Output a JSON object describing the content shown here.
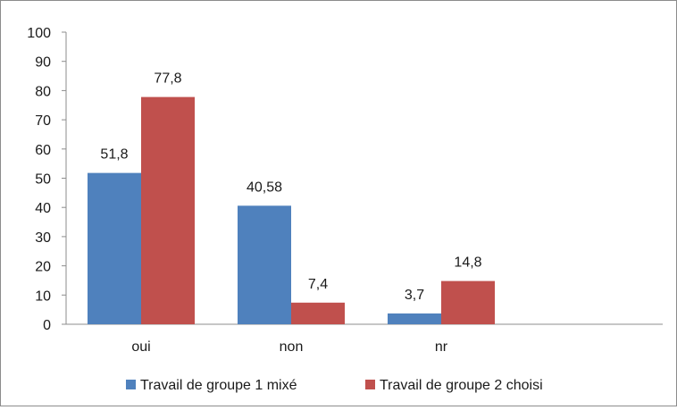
{
  "chart_data": {
    "type": "bar",
    "categories": [
      "oui",
      "non",
      "nr"
    ],
    "series": [
      {
        "name": "Travail de groupe 1 mixé",
        "values": [
          51.8,
          40.58,
          3.7
        ],
        "labels": [
          "51,8",
          "40,58",
          "3,7"
        ],
        "color": "#4f81bd"
      },
      {
        "name": "Travail de groupe 2 choisi",
        "values": [
          77.8,
          7.4,
          14.8
        ],
        "labels": [
          "77,8",
          "7,4",
          "14,8"
        ],
        "color": "#c0504d"
      }
    ],
    "ylim": [
      0,
      100
    ],
    "yticks": [
      0,
      10,
      20,
      30,
      40,
      50,
      60,
      70,
      80,
      90,
      100
    ],
    "grid": false,
    "legend_position": "bottom"
  }
}
